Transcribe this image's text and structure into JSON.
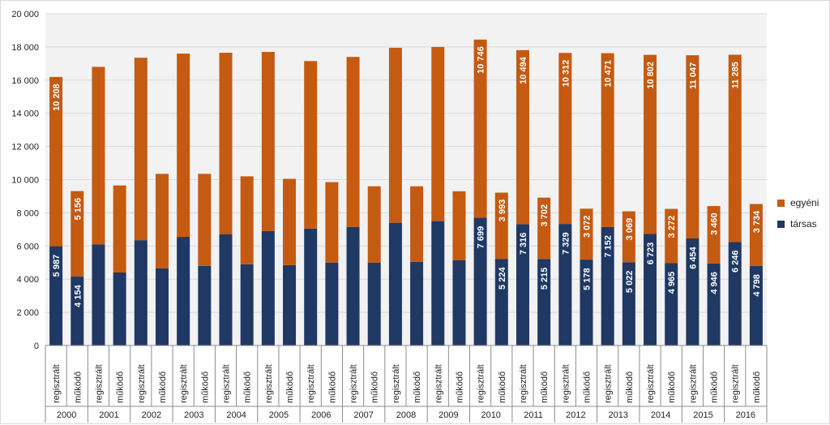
{
  "chart_data": {
    "type": "bar",
    "stacked": true,
    "years": [
      "2000",
      "2001",
      "2002",
      "2003",
      "2004",
      "2005",
      "2006",
      "2007",
      "2008",
      "2009",
      "2010",
      "2011",
      "2012",
      "2013",
      "2014",
      "2015",
      "2016"
    ],
    "subcategories": [
      "regisztrált",
      "működő"
    ],
    "series": [
      {
        "name": "társas",
        "color": "#1f3864",
        "values": [
          5987,
          4154,
          6100,
          4400,
          6350,
          4650,
          6550,
          4800,
          6700,
          4900,
          6900,
          4850,
          7050,
          5000,
          7150,
          5000,
          7400,
          5050,
          7500,
          5150,
          7699,
          5224,
          7316,
          5215,
          7329,
          5178,
          7152,
          5022,
          6723,
          4965,
          6454,
          4946,
          6246,
          4798
        ],
        "labels": [
          "5 987",
          "4 154",
          "",
          "",
          "",
          "",
          "",
          "",
          "",
          "",
          "",
          "",
          "",
          "",
          "",
          "",
          "",
          "",
          "",
          "",
          "7 699",
          "5 224",
          "7 316",
          "5 215",
          "7 329",
          "5 178",
          "7 152",
          "5 022",
          "6 723",
          "4 965",
          "6 454",
          "4 946",
          "6 246",
          "4 798"
        ]
      },
      {
        "name": "egyéni",
        "color": "#c55a11",
        "values": [
          10208,
          5156,
          10700,
          5250,
          11000,
          5700,
          11050,
          5550,
          10950,
          5300,
          10800,
          5200,
          10100,
          4850,
          10250,
          4600,
          10550,
          4550,
          10500,
          4150,
          10746,
          3993,
          10494,
          3702,
          10312,
          3072,
          10471,
          3069,
          10802,
          3272,
          11047,
          3460,
          11285,
          3734
        ],
        "labels": [
          "10 208",
          "5 156",
          "",
          "",
          "",
          "",
          "",
          "",
          "",
          "",
          "",
          "",
          "",
          "",
          "",
          "",
          "",
          "",
          "",
          "",
          "10 746",
          "3 993",
          "10 494",
          "3 702",
          "10 312",
          "3 072",
          "10 471",
          "3 069",
          "10 802",
          "3 272",
          "11 047",
          "3 460",
          "11 285",
          "3 734"
        ]
      }
    ],
    "ylim": [
      0,
      20000
    ],
    "yticks": [
      "0",
      "2 000",
      "4 000",
      "6 000",
      "8 000",
      "10 000",
      "12 000",
      "14 000",
      "16 000",
      "18 000",
      "20 000"
    ],
    "grid": true,
    "legend_position": "right",
    "plot_background": "#f2f2f2"
  },
  "legend": {
    "items": [
      {
        "name": "egyéni",
        "color": "#c55a11"
      },
      {
        "name": "társas",
        "color": "#1f3864"
      }
    ]
  }
}
